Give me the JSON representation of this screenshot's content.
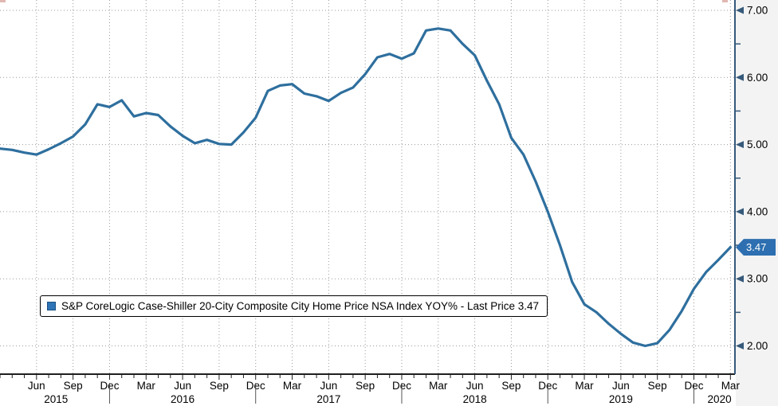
{
  "legend": {
    "label": "S&P CoreLogic Case-Shiller 20-City Composite City Home Price NSA Index YOY% - Last Price 3.47",
    "marker_color": "#2E74B6"
  },
  "badge": {
    "text": "3.47",
    "bg": "#2D6FB0"
  },
  "chart_data": {
    "type": "line",
    "title": "",
    "xlabel": "",
    "ylabel": "",
    "grid": "dotted",
    "legend_position": "bottom-left",
    "ylim": [
      1.58,
      7.0
    ],
    "y_ticks": [
      2.0,
      3.0,
      4.0,
      5.0,
      6.0,
      7.0
    ],
    "y_minor_ticks": [
      2.5,
      3.5,
      4.5,
      5.5,
      6.5
    ],
    "last_price": 3.47,
    "series": [
      {
        "name": "S&P CoreLogic Case-Shiller 20-City Composite City Home Price NSA Index YOY%",
        "color": "#2E6F9E",
        "months": [
          "2015-03",
          "2015-04",
          "2015-05",
          "2015-06",
          "2015-07",
          "2015-08",
          "2015-09",
          "2015-10",
          "2015-11",
          "2015-12",
          "2016-01",
          "2016-02",
          "2016-03",
          "2016-04",
          "2016-05",
          "2016-06",
          "2016-07",
          "2016-08",
          "2016-09",
          "2016-10",
          "2016-11",
          "2016-12",
          "2017-01",
          "2017-02",
          "2017-03",
          "2017-04",
          "2017-05",
          "2017-06",
          "2017-07",
          "2017-08",
          "2017-09",
          "2017-10",
          "2017-11",
          "2017-12",
          "2018-01",
          "2018-02",
          "2018-03",
          "2018-04",
          "2018-05",
          "2018-06",
          "2018-07",
          "2018-08",
          "2018-09",
          "2018-10",
          "2018-11",
          "2018-12",
          "2019-01",
          "2019-02",
          "2019-03",
          "2019-04",
          "2019-05",
          "2019-06",
          "2019-07",
          "2019-08",
          "2019-09",
          "2019-10",
          "2019-11",
          "2019-12",
          "2020-01",
          "2020-02",
          "2020-03"
        ],
        "values": [
          4.94,
          4.92,
          4.88,
          4.85,
          4.93,
          5.02,
          5.12,
          5.3,
          5.6,
          5.56,
          5.66,
          5.42,
          5.47,
          5.44,
          5.27,
          5.13,
          5.02,
          5.07,
          5.01,
          5.0,
          5.18,
          5.4,
          5.8,
          5.88,
          5.9,
          5.76,
          5.72,
          5.65,
          5.77,
          5.85,
          6.05,
          6.3,
          6.35,
          6.28,
          6.36,
          6.7,
          6.73,
          6.7,
          6.5,
          6.33,
          5.95,
          5.6,
          5.1,
          4.85,
          4.45,
          4.0,
          3.5,
          2.95,
          2.62,
          2.5,
          2.33,
          2.18,
          2.05,
          2.0,
          2.04,
          2.24,
          2.52,
          2.85,
          3.1,
          3.28,
          3.47
        ]
      }
    ],
    "x_quarter_label_names": {
      "03": "Mar",
      "06": "Jun",
      "09": "Sep",
      "12": "Dec"
    },
    "year_labels": [
      {
        "label": "2015",
        "month_pos": 4.6
      },
      {
        "label": "2016",
        "month_pos": 15
      },
      {
        "label": "2017",
        "month_pos": 27
      },
      {
        "label": "2018",
        "month_pos": 39
      },
      {
        "label": "2019",
        "month_pos": 51
      },
      {
        "label": "2020",
        "month_pos": 59.1
      }
    ]
  }
}
